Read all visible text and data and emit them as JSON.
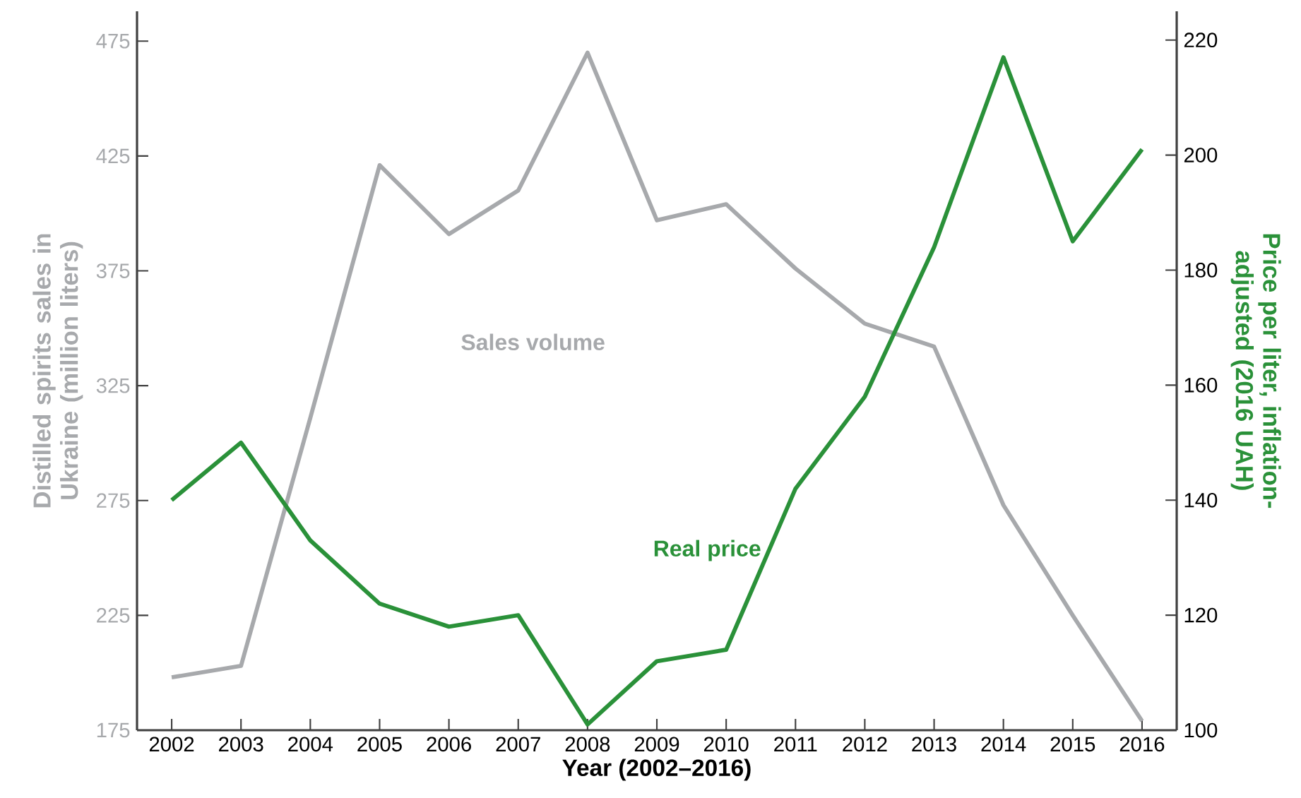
{
  "chart_data": {
    "type": "line",
    "xlabel": "Year (2002–2016)",
    "ylabel": "Distilled spirits sales in Ukraine (million liters)",
    "y2label": "Price per liter, inflation-adjusted (2016 UAH)",
    "x": [
      2002,
      2003,
      2004,
      2005,
      2006,
      2007,
      2008,
      2009,
      2010,
      2011,
      2012,
      2013,
      2014,
      2015,
      2016
    ],
    "xlim": [
      2001.5,
      2016.5
    ],
    "xticks": [
      2002,
      2003,
      2004,
      2005,
      2006,
      2007,
      2008,
      2009,
      2010,
      2011,
      2012,
      2013,
      2014,
      2015,
      2016
    ],
    "ylim": [
      175,
      488
    ],
    "yticks": [
      175,
      225,
      275,
      325,
      375,
      425,
      475
    ],
    "y2lim": [
      100,
      225
    ],
    "y2ticks": [
      100,
      120,
      140,
      160,
      180,
      200,
      220
    ],
    "series": [
      {
        "name": "Sales volume",
        "color": "#a7a9ac",
        "values": [
          198,
          203,
          311,
          421,
          391,
          410,
          470,
          397,
          404,
          376,
          352,
          342,
          273,
          225,
          179
        ]
      },
      {
        "name": "Real price",
        "color": "#2a9139",
        "axis": "y2",
        "values": [
          140,
          150,
          133,
          122,
          118,
          120,
          101,
          112,
          114,
          142,
          158,
          184,
          217,
          185,
          201
        ]
      }
    ]
  }
}
